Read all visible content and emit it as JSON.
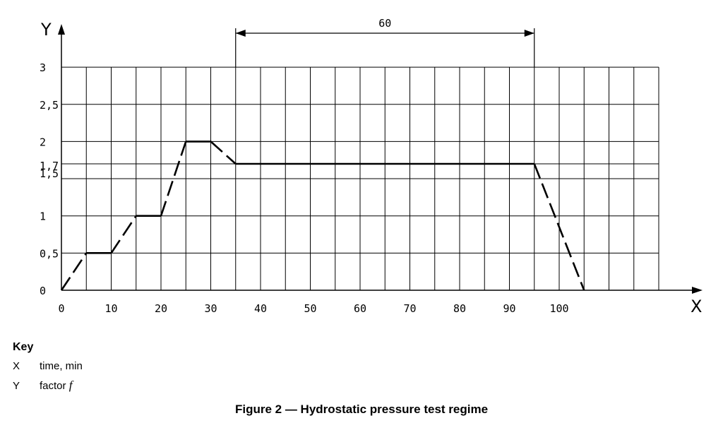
{
  "chart_data": {
    "type": "line",
    "x_axis_letter": "X",
    "y_axis_letter": "Y",
    "xlim": [
      0,
      120
    ],
    "ylim": [
      0,
      3
    ],
    "x_grid_step": 5,
    "y_grid_values": [
      0,
      0.5,
      1,
      1.5,
      1.7,
      2,
      2.5,
      3
    ],
    "grid": true,
    "x_ticks": [
      {
        "value": 0,
        "label": "0"
      },
      {
        "value": 10,
        "label": "10"
      },
      {
        "value": 20,
        "label": "20"
      },
      {
        "value": 30,
        "label": "30"
      },
      {
        "value": 40,
        "label": "40"
      },
      {
        "value": 50,
        "label": "50"
      },
      {
        "value": 60,
        "label": "60"
      },
      {
        "value": 70,
        "label": "70"
      },
      {
        "value": 80,
        "label": "80"
      },
      {
        "value": 90,
        "label": "90"
      },
      {
        "value": 100,
        "label": "100"
      }
    ],
    "y_ticks": [
      {
        "value": 0,
        "label": "0"
      },
      {
        "value": 0.5,
        "label": "0,5"
      },
      {
        "value": 1,
        "label": "1"
      },
      {
        "value": 1.5,
        "label": "1,5"
      },
      {
        "value": 1.7,
        "label": "1,7"
      },
      {
        "value": 2,
        "label": "2"
      },
      {
        "value": 2.5,
        "label": "2,5"
      },
      {
        "value": 3,
        "label": "3"
      }
    ],
    "segments": [
      {
        "from": [
          0,
          0
        ],
        "to": [
          5,
          0.5
        ],
        "style": "dashed"
      },
      {
        "from": [
          5,
          0.5
        ],
        "to": [
          10,
          0.5
        ],
        "style": "solid"
      },
      {
        "from": [
          10,
          0.5
        ],
        "to": [
          15,
          1
        ],
        "style": "dashed"
      },
      {
        "from": [
          15,
          1
        ],
        "to": [
          20,
          1
        ],
        "style": "solid"
      },
      {
        "from": [
          20,
          1
        ],
        "to": [
          25,
          2
        ],
        "style": "dashed"
      },
      {
        "from": [
          25,
          2
        ],
        "to": [
          30,
          2
        ],
        "style": "solid"
      },
      {
        "from": [
          30,
          2
        ],
        "to": [
          35,
          1.7
        ],
        "style": "dashed"
      },
      {
        "from": [
          35,
          1.7
        ],
        "to": [
          95,
          1.7
        ],
        "style": "solid"
      },
      {
        "from": [
          95,
          1.7
        ],
        "to": [
          105,
          0
        ],
        "style": "dashed"
      }
    ],
    "dimension": {
      "from": 35,
      "to": 95,
      "label": "60"
    }
  },
  "key": {
    "title": "Key",
    "items": [
      {
        "symbol": "X",
        "text": "time, min",
        "italic": ""
      },
      {
        "symbol": "Y",
        "text": "factor ",
        "italic": "f"
      }
    ]
  },
  "caption": "Figure 2 — Hydrostatic pressure test regime"
}
